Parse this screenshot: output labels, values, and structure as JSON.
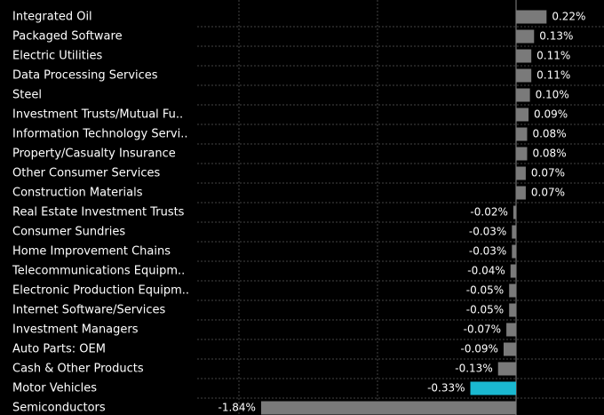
{
  "chart_data": {
    "type": "hbar",
    "categories": [
      "Integrated Oil",
      "Packaged Software",
      "Electric Utilities",
      "Data Processing Services",
      "Steel",
      "Investment Trusts/Mutual Fu..",
      "Information Technology Servi..",
      "Property/Casualty Insurance",
      "Other Consumer Services",
      "Construction Materials",
      "Real Estate Investment Trusts",
      "Consumer Sundries",
      "Home Improvement Chains",
      "Telecommunications Equipm..",
      "Electronic Production Equipm..",
      "Internet Software/Services",
      "Investment Managers",
      "Auto Parts: OEM",
      "Cash & Other Products",
      "Motor Vehicles",
      "Semiconductors"
    ],
    "values": [
      0.22,
      0.13,
      0.11,
      0.11,
      0.1,
      0.09,
      0.08,
      0.08,
      0.07,
      0.07,
      -0.02,
      -0.03,
      -0.03,
      -0.04,
      -0.05,
      -0.05,
      -0.07,
      -0.09,
      -0.13,
      -0.33,
      -1.84
    ],
    "value_labels": [
      "0.22%",
      "0.13%",
      "0.11%",
      "0.11%",
      "0.10%",
      "0.09%",
      "0.08%",
      "0.08%",
      "0.07%",
      "0.07%",
      "-0.02%",
      "-0.03%",
      "-0.03%",
      "-0.04%",
      "-0.05%",
      "-0.05%",
      "-0.07%",
      "-0.09%",
      "-0.13%",
      "-0.33%",
      "-1.84%"
    ],
    "colors": [
      "#7a7a7a",
      "#7a7a7a",
      "#7a7a7a",
      "#7a7a7a",
      "#7a7a7a",
      "#7a7a7a",
      "#7a7a7a",
      "#7a7a7a",
      "#7a7a7a",
      "#7a7a7a",
      "#7a7a7a",
      "#7a7a7a",
      "#7a7a7a",
      "#7a7a7a",
      "#7a7a7a",
      "#7a7a7a",
      "#7a7a7a",
      "#7a7a7a",
      "#7a7a7a",
      "#1ab8d0",
      "#7a7a7a"
    ],
    "xticks": [
      -2,
      -1,
      0
    ],
    "grid": true
  }
}
